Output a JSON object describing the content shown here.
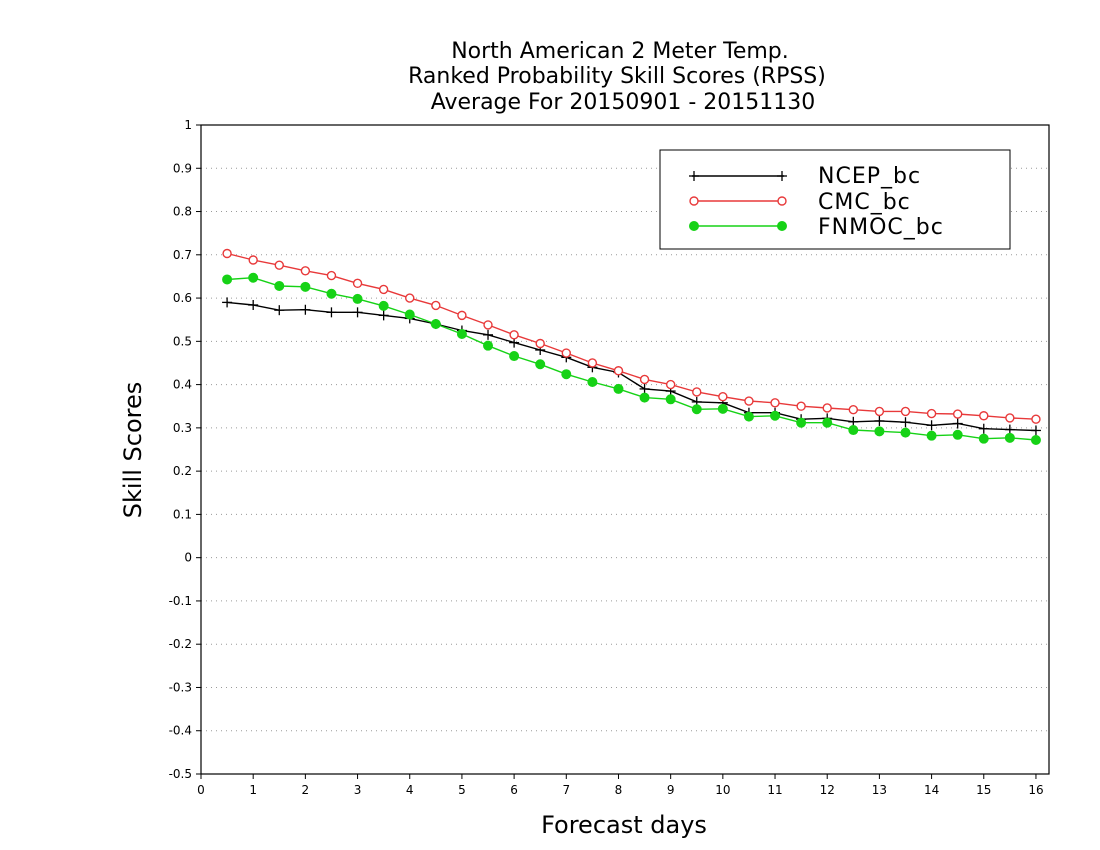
{
  "chart_data": {
    "type": "line",
    "title_lines": [
      "North American 2 Meter Temp.",
      "Ranked Probability Skill Scores (RPSS)",
      "Average For 20150901 - 20151130"
    ],
    "xlabel": "Forecast days",
    "ylabel": "Skill Scores",
    "xlim": [
      0,
      16.25
    ],
    "ylim": [
      -0.5,
      1
    ],
    "xticks": [
      "0",
      "1",
      "2",
      "3",
      "4",
      "5",
      "6",
      "7",
      "8",
      "9",
      "10",
      "11",
      "12",
      "13",
      "14",
      "15",
      "16"
    ],
    "yticks": [
      "-0.5",
      "-0.4",
      "-0.3",
      "-0.2",
      "-0.1",
      "0",
      "0.1",
      "0.2",
      "0.3",
      "0.4",
      "0.5",
      "0.6",
      "0.7",
      "0.8",
      "0.9",
      "1"
    ],
    "grid": "horizontal dotted",
    "legend_position": "top-right",
    "x": [
      0.5,
      1,
      1.5,
      2,
      2.5,
      3,
      3.5,
      4,
      4.5,
      5,
      5.5,
      6,
      6.5,
      7,
      7.5,
      8,
      8.5,
      9,
      9.5,
      10,
      10.5,
      11,
      11.5,
      12,
      12.5,
      13,
      13.5,
      14,
      14.5,
      15,
      15.5,
      16
    ],
    "series": [
      {
        "name": "NCEP_bc",
        "color": "#000000",
        "marker": "plus",
        "values": [
          0.59,
          0.584,
          0.572,
          0.573,
          0.567,
          0.567,
          0.56,
          0.553,
          0.54,
          0.525,
          0.515,
          0.497,
          0.48,
          0.463,
          0.44,
          0.428,
          0.39,
          0.385,
          0.36,
          0.358,
          0.335,
          0.335,
          0.32,
          0.322,
          0.314,
          0.316,
          0.313,
          0.306,
          0.31,
          0.298,
          0.296,
          0.294
        ]
      },
      {
        "name": "CMC_bc",
        "color": "#e8393a",
        "marker": "open-circle",
        "values": [
          0.703,
          0.688,
          0.676,
          0.663,
          0.652,
          0.634,
          0.62,
          0.6,
          0.583,
          0.56,
          0.538,
          0.515,
          0.495,
          0.473,
          0.45,
          0.432,
          0.412,
          0.4,
          0.383,
          0.372,
          0.362,
          0.358,
          0.35,
          0.346,
          0.342,
          0.338,
          0.338,
          0.333,
          0.332,
          0.328,
          0.323,
          0.32
        ]
      },
      {
        "name": "FNMOC_bc",
        "color": "#16d216",
        "marker": "filled-circle",
        "values": [
          0.643,
          0.647,
          0.628,
          0.626,
          0.61,
          0.598,
          0.582,
          0.562,
          0.54,
          0.517,
          0.49,
          0.466,
          0.447,
          0.424,
          0.406,
          0.39,
          0.37,
          0.366,
          0.343,
          0.344,
          0.326,
          0.328,
          0.312,
          0.312,
          0.295,
          0.292,
          0.289,
          0.282,
          0.284,
          0.275,
          0.277,
          0.272
        ]
      }
    ]
  }
}
